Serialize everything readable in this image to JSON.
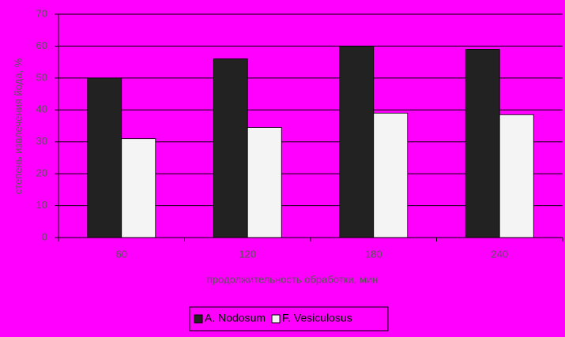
{
  "chart_data": {
    "type": "bar",
    "y_label": "степень извлечения йода, %",
    "x_label": "продолжительность обработки, мин",
    "categories": [
      "60",
      "120",
      "180",
      "240"
    ],
    "series": [
      {
        "name": "A. Nodosum",
        "color": "#222222",
        "values": [
          50,
          56,
          60,
          59
        ]
      },
      {
        "name": "F. Vesiculosus",
        "color": "#f4f4f4",
        "values": [
          31,
          34.5,
          39,
          38.5
        ]
      }
    ],
    "ylim": [
      0,
      70
    ],
    "yticks": [
      0,
      10,
      20,
      30,
      40,
      50,
      60,
      70
    ],
    "grid": true
  }
}
